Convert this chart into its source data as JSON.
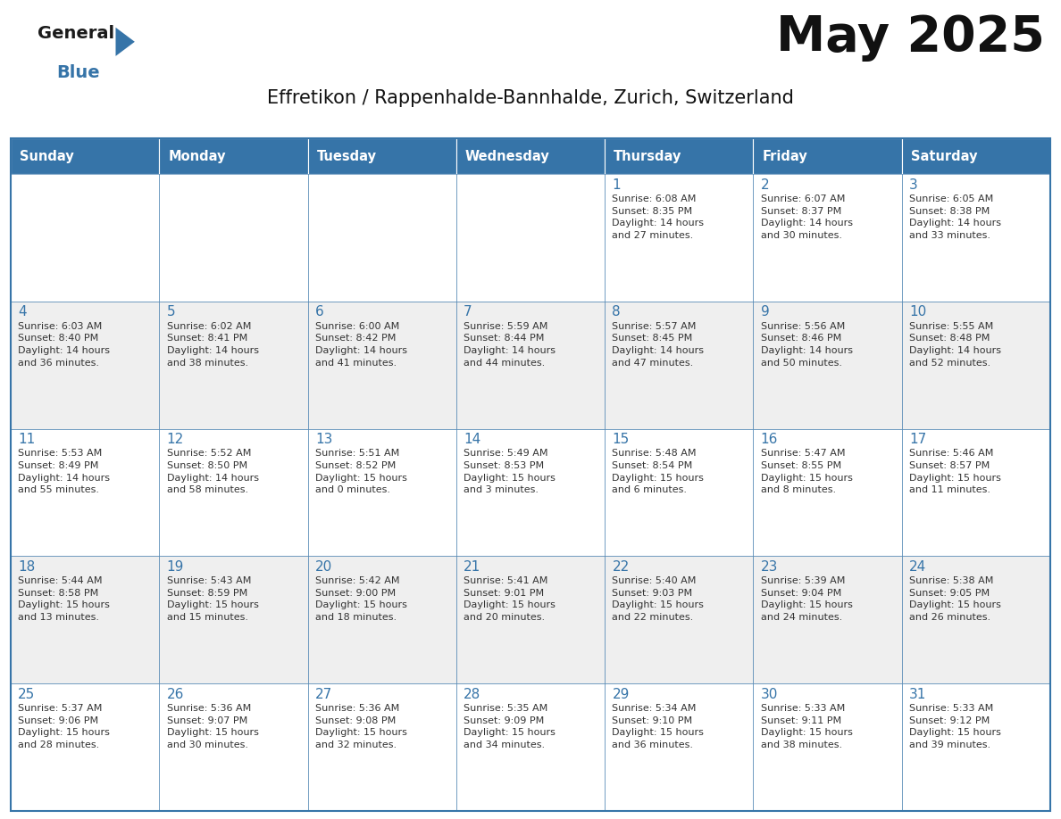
{
  "title": "May 2025",
  "subtitle": "Effretikon / Rappenhalde-Bannhalde, Zurich, Switzerland",
  "header_color": "#3674a8",
  "header_text_color": "#FFFFFF",
  "row_bg": [
    "#FFFFFF",
    "#EFEFEF",
    "#FFFFFF",
    "#EFEFEF",
    "#FFFFFF"
  ],
  "border_color": "#3674a8",
  "day_number_color": "#3674a8",
  "text_color": "#333333",
  "days_of_week": [
    "Sunday",
    "Monday",
    "Tuesday",
    "Wednesday",
    "Thursday",
    "Friday",
    "Saturday"
  ],
  "logo_general_color": "#1a1a1a",
  "logo_blue_color": "#3674a8",
  "logo_triangle_color": "#3674a8",
  "calendar": [
    [
      null,
      null,
      null,
      null,
      {
        "day": 1,
        "sunrise": "6:08 AM",
        "sunset": "8:35 PM",
        "daylight_h": "14 hours",
        "daylight_m": "27 minutes."
      },
      {
        "day": 2,
        "sunrise": "6:07 AM",
        "sunset": "8:37 PM",
        "daylight_h": "14 hours",
        "daylight_m": "30 minutes."
      },
      {
        "day": 3,
        "sunrise": "6:05 AM",
        "sunset": "8:38 PM",
        "daylight_h": "14 hours",
        "daylight_m": "33 minutes."
      }
    ],
    [
      {
        "day": 4,
        "sunrise": "6:03 AM",
        "sunset": "8:40 PM",
        "daylight_h": "14 hours",
        "daylight_m": "36 minutes."
      },
      {
        "day": 5,
        "sunrise": "6:02 AM",
        "sunset": "8:41 PM",
        "daylight_h": "14 hours",
        "daylight_m": "38 minutes."
      },
      {
        "day": 6,
        "sunrise": "6:00 AM",
        "sunset": "8:42 PM",
        "daylight_h": "14 hours",
        "daylight_m": "41 minutes."
      },
      {
        "day": 7,
        "sunrise": "5:59 AM",
        "sunset": "8:44 PM",
        "daylight_h": "14 hours",
        "daylight_m": "44 minutes."
      },
      {
        "day": 8,
        "sunrise": "5:57 AM",
        "sunset": "8:45 PM",
        "daylight_h": "14 hours",
        "daylight_m": "47 minutes."
      },
      {
        "day": 9,
        "sunrise": "5:56 AM",
        "sunset": "8:46 PM",
        "daylight_h": "14 hours",
        "daylight_m": "50 minutes."
      },
      {
        "day": 10,
        "sunrise": "5:55 AM",
        "sunset": "8:48 PM",
        "daylight_h": "14 hours",
        "daylight_m": "52 minutes."
      }
    ],
    [
      {
        "day": 11,
        "sunrise": "5:53 AM",
        "sunset": "8:49 PM",
        "daylight_h": "14 hours",
        "daylight_m": "55 minutes."
      },
      {
        "day": 12,
        "sunrise": "5:52 AM",
        "sunset": "8:50 PM",
        "daylight_h": "14 hours",
        "daylight_m": "58 minutes."
      },
      {
        "day": 13,
        "sunrise": "5:51 AM",
        "sunset": "8:52 PM",
        "daylight_h": "15 hours",
        "daylight_m": "0 minutes."
      },
      {
        "day": 14,
        "sunrise": "5:49 AM",
        "sunset": "8:53 PM",
        "daylight_h": "15 hours",
        "daylight_m": "3 minutes."
      },
      {
        "day": 15,
        "sunrise": "5:48 AM",
        "sunset": "8:54 PM",
        "daylight_h": "15 hours",
        "daylight_m": "6 minutes."
      },
      {
        "day": 16,
        "sunrise": "5:47 AM",
        "sunset": "8:55 PM",
        "daylight_h": "15 hours",
        "daylight_m": "8 minutes."
      },
      {
        "day": 17,
        "sunrise": "5:46 AM",
        "sunset": "8:57 PM",
        "daylight_h": "15 hours",
        "daylight_m": "11 minutes."
      }
    ],
    [
      {
        "day": 18,
        "sunrise": "5:44 AM",
        "sunset": "8:58 PM",
        "daylight_h": "15 hours",
        "daylight_m": "13 minutes."
      },
      {
        "day": 19,
        "sunrise": "5:43 AM",
        "sunset": "8:59 PM",
        "daylight_h": "15 hours",
        "daylight_m": "15 minutes."
      },
      {
        "day": 20,
        "sunrise": "5:42 AM",
        "sunset": "9:00 PM",
        "daylight_h": "15 hours",
        "daylight_m": "18 minutes."
      },
      {
        "day": 21,
        "sunrise": "5:41 AM",
        "sunset": "9:01 PM",
        "daylight_h": "15 hours",
        "daylight_m": "20 minutes."
      },
      {
        "day": 22,
        "sunrise": "5:40 AM",
        "sunset": "9:03 PM",
        "daylight_h": "15 hours",
        "daylight_m": "22 minutes."
      },
      {
        "day": 23,
        "sunrise": "5:39 AM",
        "sunset": "9:04 PM",
        "daylight_h": "15 hours",
        "daylight_m": "24 minutes."
      },
      {
        "day": 24,
        "sunrise": "5:38 AM",
        "sunset": "9:05 PM",
        "daylight_h": "15 hours",
        "daylight_m": "26 minutes."
      }
    ],
    [
      {
        "day": 25,
        "sunrise": "5:37 AM",
        "sunset": "9:06 PM",
        "daylight_h": "15 hours",
        "daylight_m": "28 minutes."
      },
      {
        "day": 26,
        "sunrise": "5:36 AM",
        "sunset": "9:07 PM",
        "daylight_h": "15 hours",
        "daylight_m": "30 minutes."
      },
      {
        "day": 27,
        "sunrise": "5:36 AM",
        "sunset": "9:08 PM",
        "daylight_h": "15 hours",
        "daylight_m": "32 minutes."
      },
      {
        "day": 28,
        "sunrise": "5:35 AM",
        "sunset": "9:09 PM",
        "daylight_h": "15 hours",
        "daylight_m": "34 minutes."
      },
      {
        "day": 29,
        "sunrise": "5:34 AM",
        "sunset": "9:10 PM",
        "daylight_h": "15 hours",
        "daylight_m": "36 minutes."
      },
      {
        "day": 30,
        "sunrise": "5:33 AM",
        "sunset": "9:11 PM",
        "daylight_h": "15 hours",
        "daylight_m": "38 minutes."
      },
      {
        "day": 31,
        "sunrise": "5:33 AM",
        "sunset": "9:12 PM",
        "daylight_h": "15 hours",
        "daylight_m": "39 minutes."
      }
    ]
  ]
}
